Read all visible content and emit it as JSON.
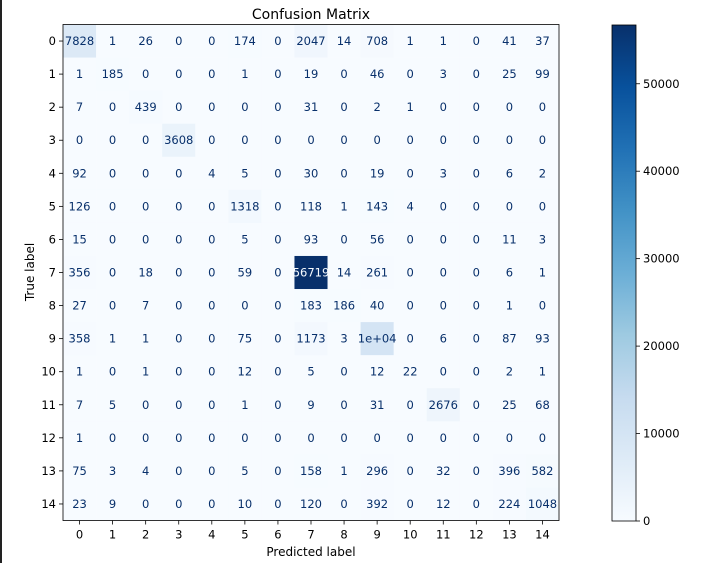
{
  "chart_data": {
    "type": "heatmap",
    "title": "Confusion Matrix",
    "xlabel": "Predicted label",
    "ylabel": "True label",
    "x_ticks": [
      "0",
      "1",
      "2",
      "3",
      "4",
      "5",
      "6",
      "7",
      "8",
      "9",
      "10",
      "11",
      "12",
      "13",
      "14"
    ],
    "y_ticks": [
      "0",
      "1",
      "2",
      "3",
      "4",
      "5",
      "6",
      "7",
      "8",
      "9",
      "10",
      "11",
      "12",
      "13",
      "14"
    ],
    "matrix": [
      [
        7828,
        1,
        26,
        0,
        0,
        174,
        0,
        2047,
        14,
        708,
        1,
        1,
        0,
        41,
        37
      ],
      [
        1,
        185,
        0,
        0,
        0,
        1,
        0,
        19,
        0,
        46,
        0,
        3,
        0,
        25,
        99
      ],
      [
        7,
        0,
        439,
        0,
        0,
        0,
        0,
        31,
        0,
        2,
        1,
        0,
        0,
        0,
        0
      ],
      [
        0,
        0,
        0,
        3608,
        0,
        0,
        0,
        0,
        0,
        0,
        0,
        0,
        0,
        0,
        0
      ],
      [
        92,
        0,
        0,
        0,
        4,
        5,
        0,
        30,
        0,
        19,
        0,
        3,
        0,
        6,
        2
      ],
      [
        126,
        0,
        0,
        0,
        0,
        1318,
        0,
        118,
        1,
        143,
        4,
        0,
        0,
        0,
        0
      ],
      [
        15,
        0,
        0,
        0,
        0,
        5,
        0,
        93,
        0,
        56,
        0,
        0,
        0,
        11,
        3
      ],
      [
        356,
        0,
        18,
        0,
        0,
        59,
        0,
        56719,
        14,
        261,
        0,
        0,
        0,
        6,
        1
      ],
      [
        27,
        0,
        7,
        0,
        0,
        0,
        0,
        183,
        186,
        40,
        0,
        0,
        0,
        1,
        0
      ],
      [
        358,
        1,
        1,
        0,
        0,
        75,
        0,
        1173,
        3,
        10000,
        0,
        6,
        0,
        87,
        93
      ],
      [
        1,
        0,
        1,
        0,
        0,
        12,
        0,
        5,
        0,
        12,
        22,
        0,
        0,
        2,
        1
      ],
      [
        7,
        5,
        0,
        0,
        0,
        1,
        0,
        9,
        0,
        31,
        0,
        2676,
        0,
        25,
        68
      ],
      [
        1,
        0,
        0,
        0,
        0,
        0,
        0,
        0,
        0,
        0,
        0,
        0,
        0,
        0,
        0
      ],
      [
        75,
        3,
        4,
        0,
        0,
        5,
        0,
        158,
        1,
        296,
        0,
        32,
        0,
        396,
        582
      ],
      [
        23,
        9,
        0,
        0,
        0,
        10,
        0,
        120,
        0,
        392,
        0,
        12,
        0,
        224,
        1048
      ]
    ],
    "cell_labels": [
      [
        "7828",
        "1",
        "26",
        "0",
        "0",
        "174",
        "0",
        "2047",
        "14",
        "708",
        "1",
        "1",
        "0",
        "41",
        "37"
      ],
      [
        "1",
        "185",
        "0",
        "0",
        "0",
        "1",
        "0",
        "19",
        "0",
        "46",
        "0",
        "3",
        "0",
        "25",
        "99"
      ],
      [
        "7",
        "0",
        "439",
        "0",
        "0",
        "0",
        "0",
        "31",
        "0",
        "2",
        "1",
        "0",
        "0",
        "0",
        "0"
      ],
      [
        "0",
        "0",
        "0",
        "3608",
        "0",
        "0",
        "0",
        "0",
        "0",
        "0",
        "0",
        "0",
        "0",
        "0",
        "0"
      ],
      [
        "92",
        "0",
        "0",
        "0",
        "4",
        "5",
        "0",
        "30",
        "0",
        "19",
        "0",
        "3",
        "0",
        "6",
        "2"
      ],
      [
        "126",
        "0",
        "0",
        "0",
        "0",
        "1318",
        "0",
        "118",
        "1",
        "143",
        "4",
        "0",
        "0",
        "0",
        "0"
      ],
      [
        "15",
        "0",
        "0",
        "0",
        "0",
        "5",
        "0",
        "93",
        "0",
        "56",
        "0",
        "0",
        "0",
        "11",
        "3"
      ],
      [
        "356",
        "0",
        "18",
        "0",
        "0",
        "59",
        "0",
        "56719",
        "14",
        "261",
        "0",
        "0",
        "0",
        "6",
        "1"
      ],
      [
        "27",
        "0",
        "7",
        "0",
        "0",
        "0",
        "0",
        "183",
        "186",
        "40",
        "0",
        "0",
        "0",
        "1",
        "0"
      ],
      [
        "358",
        "1",
        "1",
        "0",
        "0",
        "75",
        "0",
        "1173",
        "3",
        "1e+04",
        "0",
        "6",
        "0",
        "87",
        "93"
      ],
      [
        "1",
        "0",
        "1",
        "0",
        "0",
        "12",
        "0",
        "5",
        "0",
        "12",
        "22",
        "0",
        "0",
        "2",
        "1"
      ],
      [
        "7",
        "5",
        "0",
        "0",
        "0",
        "1",
        "0",
        "9",
        "0",
        "31",
        "0",
        "2676",
        "0",
        "25",
        "68"
      ],
      [
        "1",
        "0",
        "0",
        "0",
        "0",
        "0",
        "0",
        "0",
        "0",
        "0",
        "0",
        "0",
        "0",
        "0",
        "0"
      ],
      [
        "75",
        "3",
        "4",
        "0",
        "0",
        "5",
        "0",
        "158",
        "1",
        "296",
        "0",
        "32",
        "0",
        "396",
        "582"
      ],
      [
        "23",
        "9",
        "0",
        "0",
        "0",
        "10",
        "0",
        "120",
        "0",
        "392",
        "0",
        "12",
        "0",
        "224",
        "1048"
      ]
    ],
    "colorbar": {
      "ticks": [
        0,
        10000,
        20000,
        30000,
        40000,
        50000
      ],
      "range": [
        0,
        56719
      ]
    },
    "colormap": "Blues",
    "colors": {
      "low": "#f7fbff",
      "high": "#08306b",
      "text_dark": "#08306b",
      "text_light": "#f7fbff"
    },
    "grid": false
  }
}
